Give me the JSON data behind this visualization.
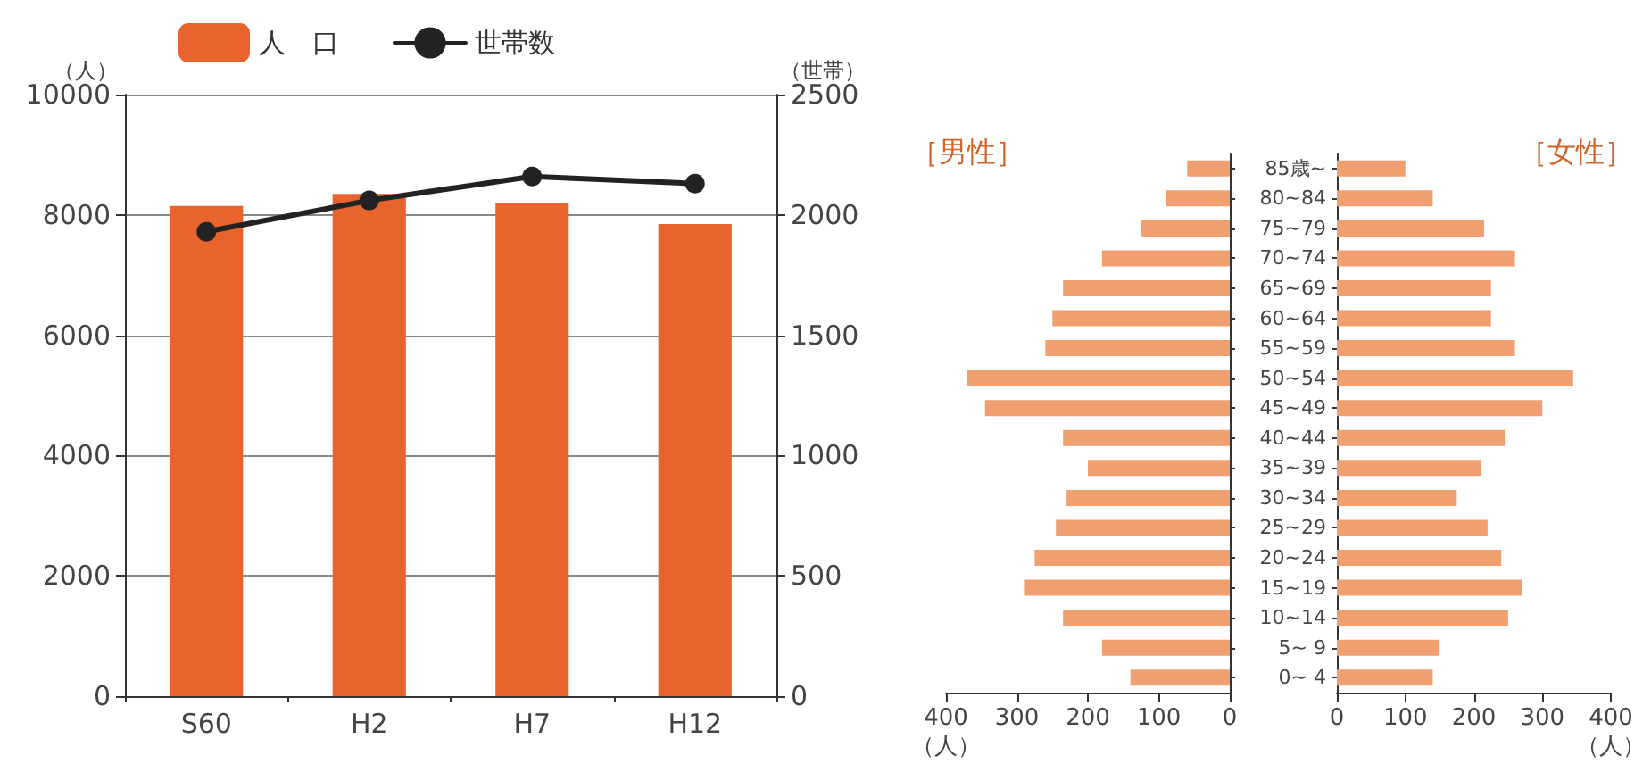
{
  "chart_data": [
    {
      "type": "bar",
      "categories": [
        "S60",
        "H2",
        "H7",
        "H12"
      ],
      "ylabel": "（人）",
      "y2label": "（世帯）",
      "ylim": [
        0,
        10000
      ],
      "yticks": [
        0,
        2000,
        4000,
        6000,
        8000,
        10000
      ],
      "y2lim": [
        0,
        2500
      ],
      "y2ticks": [
        0,
        500,
        1000,
        1500,
        2000,
        2500
      ],
      "grid": "y",
      "legend": "top",
      "series": [
        {
          "name": "人　口",
          "type": "bar",
          "color": "#e8642c",
          "values": [
            8150,
            8350,
            8200,
            7850
          ]
        },
        {
          "name": "世帯数",
          "type": "line",
          "axis": "y2",
          "color": "#222222",
          "marker": "circle",
          "values": [
            1930,
            2060,
            2160,
            2130
          ]
        }
      ]
    },
    {
      "type": "bar",
      "orientation": "horizontal",
      "title": "［男性］",
      "xlabel": "（人）",
      "categories": [
        null,
        null,
        null,
        null,
        null,
        null,
        null,
        null,
        null,
        null,
        null,
        null,
        null,
        null,
        null,
        null,
        null,
        null
      ],
      "xlim": [
        400,
        0
      ],
      "xticks": [
        400,
        300,
        200,
        100,
        0
      ],
      "tick_labels": "x",
      "grid": false,
      "series": [
        {
          "color": "#f0a070",
          "values": [
            60,
            90,
            125,
            180,
            235,
            250,
            260,
            370,
            345,
            235,
            200,
            230,
            245,
            275,
            290,
            235,
            180,
            140
          ]
        }
      ]
    },
    {
      "type": "bar",
      "orientation": "horizontal",
      "title": "［女性］",
      "xlabel": "（人）",
      "categories": [
        "85歳~",
        "80~84",
        "75~79",
        "70~74",
        "65~69",
        "60~64",
        "55~59",
        "50~54",
        "45~49",
        "40~44",
        "35~39",
        "30~34",
        "25~29",
        "20~24",
        "15~19",
        "10~14",
        "5~ 9",
        "0~ 4"
      ],
      "xlim": [
        0,
        400
      ],
      "xticks": [
        0,
        100,
        200,
        300,
        400
      ],
      "grid": false,
      "series": [
        {
          "color": "#f0a070",
          "values": [
            100,
            140,
            215,
            260,
            225,
            225,
            260,
            345,
            300,
            245,
            210,
            175,
            220,
            240,
            270,
            250,
            150,
            140
          ]
        }
      ]
    }
  ]
}
